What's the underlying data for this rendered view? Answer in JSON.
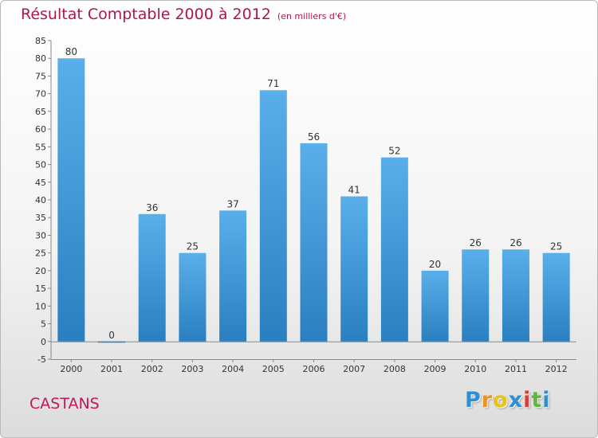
{
  "chart_data": {
    "type": "bar",
    "title": "Résultat Comptable 2000 à 2012",
    "subtitle": "(en milliers d'€)",
    "categories": [
      "2000",
      "2001",
      "2002",
      "2003",
      "2004",
      "2005",
      "2006",
      "2007",
      "2008",
      "2009",
      "2010",
      "2011",
      "2012"
    ],
    "values": [
      80,
      0,
      36,
      25,
      37,
      71,
      56,
      41,
      52,
      20,
      26,
      26,
      25
    ],
    "ylim": [
      -5,
      85
    ],
    "yticks": [
      -5,
      0,
      5,
      10,
      15,
      20,
      25,
      30,
      35,
      40,
      45,
      50,
      55,
      60,
      65,
      70,
      75,
      80,
      85
    ],
    "xlabel": "",
    "ylabel": "",
    "grid": false,
    "bar_color_top": "#5aafea",
    "bar_color_bottom": "#2a7fc0"
  },
  "footer": {
    "town": "CASTANS",
    "logo_letters": [
      "P",
      "r",
      "o",
      "x",
      "i",
      "t",
      "i"
    ],
    "logo_colors": [
      "#2e8fd6",
      "#f0902a",
      "#e8c21a",
      "#2e8fd6",
      "#e23a3a",
      "#5fb83a",
      "#2e8fd6"
    ]
  }
}
